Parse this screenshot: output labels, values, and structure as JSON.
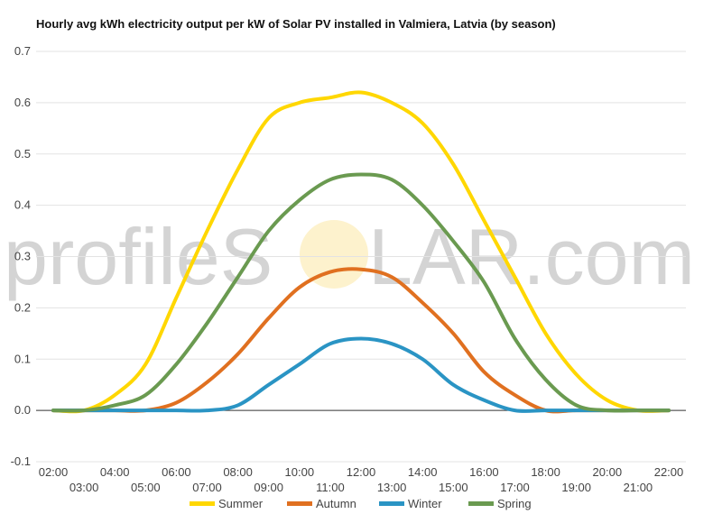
{
  "chart_data": {
    "type": "line",
    "title": "Hourly avg kWh electricity output per kW of Solar PV installed in Valmiera, Latvia (by season)",
    "xlabel": "",
    "ylabel": "",
    "x": [
      "02:00",
      "03:00",
      "04:00",
      "05:00",
      "06:00",
      "07:00",
      "08:00",
      "09:00",
      "10:00",
      "11:00",
      "12:00",
      "13:00",
      "14:00",
      "15:00",
      "16:00",
      "17:00",
      "18:00",
      "19:00",
      "20:00",
      "21:00",
      "22:00"
    ],
    "ylim": [
      -0.1,
      0.7
    ],
    "yticks": [
      -0.1,
      0.0,
      0.1,
      0.2,
      0.3,
      0.4,
      0.5,
      0.6,
      0.7
    ],
    "yticks_labels": [
      "-0.1",
      "0.0",
      "0.1",
      "0.2",
      "0.3",
      "0.4",
      "0.5",
      "0.6",
      "0.7"
    ],
    "grid": true,
    "legend": "bottom",
    "series": [
      {
        "name": "Summer",
        "color": "#FFD700",
        "values": [
          0.0,
          0.0,
          0.03,
          0.09,
          0.22,
          0.35,
          0.47,
          0.57,
          0.6,
          0.61,
          0.62,
          0.6,
          0.56,
          0.48,
          0.37,
          0.26,
          0.15,
          0.07,
          0.02,
          0.0,
          0.0
        ]
      },
      {
        "name": "Autumn",
        "color": "#E07020",
        "values": [
          0.0,
          0.0,
          0.0,
          0.0,
          0.015,
          0.055,
          0.11,
          0.18,
          0.24,
          0.27,
          0.275,
          0.26,
          0.21,
          0.15,
          0.075,
          0.03,
          0.0,
          0.0,
          0.0,
          0.0,
          0.0
        ]
      },
      {
        "name": "Winter",
        "color": "#2A94C4",
        "values": [
          0.0,
          0.0,
          0.0,
          0.0,
          0.0,
          0.0,
          0.01,
          0.05,
          0.09,
          0.13,
          0.14,
          0.13,
          0.1,
          0.05,
          0.02,
          0.0,
          0.0,
          0.0,
          0.0,
          0.0,
          0.0
        ]
      },
      {
        "name": "Spring",
        "color": "#6A9A50",
        "values": [
          0.0,
          0.0,
          0.01,
          0.03,
          0.09,
          0.17,
          0.26,
          0.35,
          0.41,
          0.45,
          0.46,
          0.45,
          0.4,
          0.33,
          0.25,
          0.14,
          0.06,
          0.01,
          0.0,
          0.0,
          0.0
        ]
      }
    ]
  },
  "watermark": {
    "left": "profileS",
    "right": "LAR.com"
  }
}
